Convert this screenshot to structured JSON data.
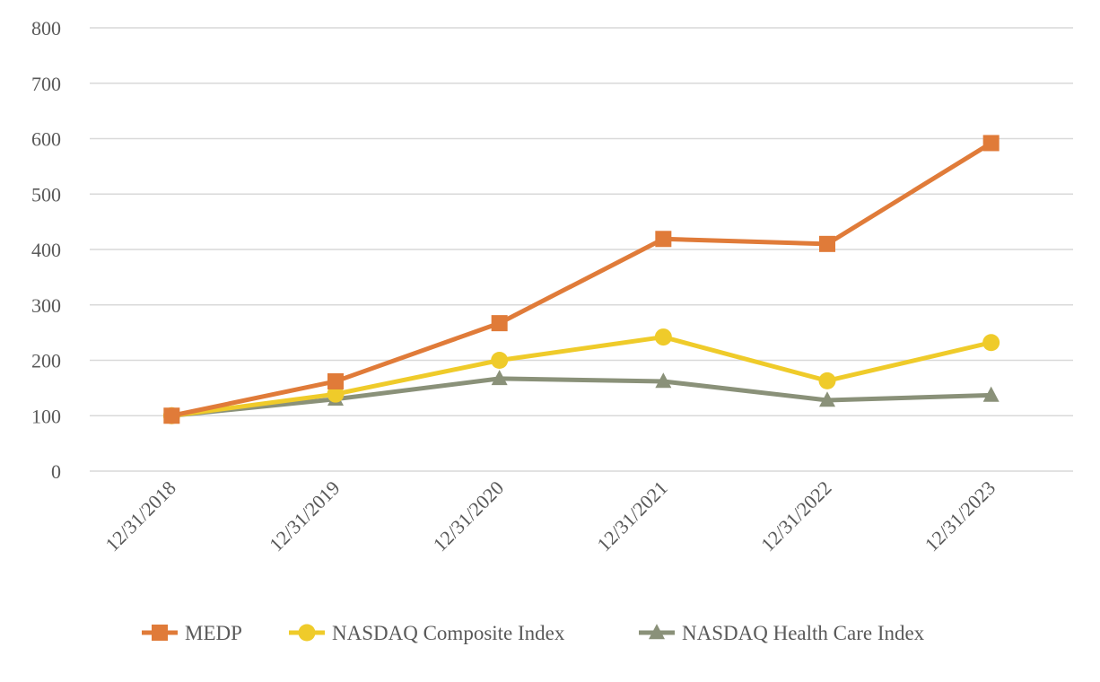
{
  "chart_data": {
    "type": "line",
    "title": "",
    "xlabel": "",
    "ylabel": "",
    "categories": [
      "12/31/2018",
      "12/31/2019",
      "12/31/2020",
      "12/31/2021",
      "12/31/2022",
      "12/31/2023"
    ],
    "ylim": [
      0,
      800
    ],
    "yticks": [
      0,
      100,
      200,
      300,
      400,
      500,
      600,
      700,
      800
    ],
    "grid": "horizontal",
    "legend_position": "bottom",
    "series": [
      {
        "name": "MEDP",
        "values": [
          100,
          162,
          267,
          419,
          410,
          592
        ],
        "color": "#E07B39",
        "marker": "square"
      },
      {
        "name": "NASDAQ Composite Index",
        "values": [
          100,
          139,
          200,
          242,
          163,
          232
        ],
        "color": "#EFCB2A",
        "marker": "circle"
      },
      {
        "name": "NASDAQ Health Care Index",
        "values": [
          100,
          130,
          167,
          162,
          128,
          137
        ],
        "color": "#8A9179",
        "marker": "triangle"
      }
    ]
  }
}
